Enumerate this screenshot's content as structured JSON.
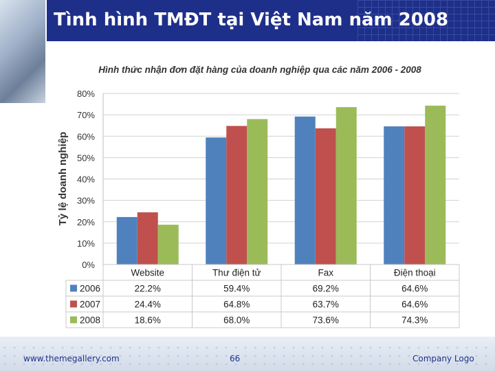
{
  "slide": {
    "title": "Tình hình TMĐT tại Việt Nam năm 2008",
    "footer_left": "www.themegallery.com",
    "footer_center": "66",
    "footer_right": "Company Logo"
  },
  "colors": {
    "header_bg": "#1e2f8a",
    "series": [
      "#4f81bd",
      "#c0504d",
      "#9bbb59"
    ]
  },
  "chart_data": {
    "type": "bar",
    "title": "Hình thức nhận đơn đặt hàng của doanh nghiệp qua các năm 2006 - 2008",
    "xlabel": "",
    "ylabel": "Tỷ lệ doanh nghiệp",
    "ylim": [
      0,
      80
    ],
    "yticks": [
      "0%",
      "10%",
      "20%",
      "30%",
      "40%",
      "50%",
      "60%",
      "70%",
      "80%"
    ],
    "categories": [
      "Website",
      "Thư điện tử",
      "Fax",
      "Điện thoại"
    ],
    "series": [
      {
        "name": "2006",
        "values": [
          22.2,
          59.4,
          69.2,
          64.6
        ],
        "labels": [
          "22.2%",
          "59.4%",
          "69.2%",
          "64.6%"
        ]
      },
      {
        "name": "2007",
        "values": [
          24.4,
          64.8,
          63.7,
          64.6
        ],
        "labels": [
          "24.4%",
          "64.8%",
          "63.7%",
          "64.6%"
        ]
      },
      {
        "name": "2008",
        "values": [
          18.6,
          68.0,
          73.6,
          74.3
        ],
        "labels": [
          "18.6%",
          "68.0%",
          "73.6%",
          "74.3%"
        ]
      }
    ],
    "grid": true,
    "legend": "data-table"
  }
}
